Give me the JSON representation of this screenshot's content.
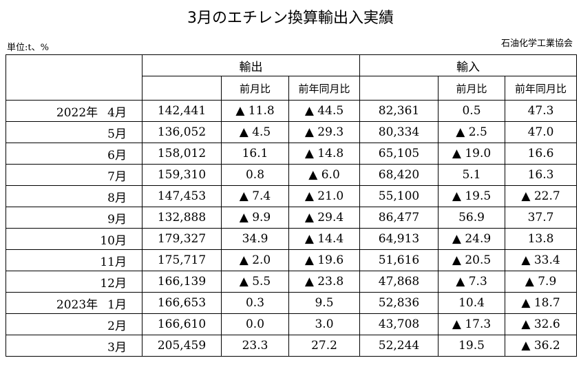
{
  "title": "3月のエチレン換算輸出入実績",
  "unit": "単位:t、%",
  "source": "石油化学工業協会",
  "headers": {
    "export": "輸出",
    "import": "輸入",
    "mom": "前月比",
    "yoy": "前年同月比"
  },
  "rows": [
    {
      "year": "2022年",
      "month": "4月",
      "exp": "142,441",
      "exp_mom": "▲ 11.8",
      "exp_yoy": "▲ 44.5",
      "imp": "82,361",
      "imp_mom": "0.5",
      "imp_yoy": "47.3"
    },
    {
      "year": "",
      "month": "5月",
      "exp": "136,052",
      "exp_mom": "▲ 4.5",
      "exp_yoy": "▲ 29.3",
      "imp": "80,334",
      "imp_mom": "▲ 2.5",
      "imp_yoy": "47.0"
    },
    {
      "year": "",
      "month": "6月",
      "exp": "158,012",
      "exp_mom": "16.1",
      "exp_yoy": "▲ 14.8",
      "imp": "65,105",
      "imp_mom": "▲ 19.0",
      "imp_yoy": "16.6"
    },
    {
      "year": "",
      "month": "7月",
      "exp": "159,310",
      "exp_mom": "0.8",
      "exp_yoy": "▲ 6.0",
      "imp": "68,420",
      "imp_mom": "5.1",
      "imp_yoy": "16.3"
    },
    {
      "year": "",
      "month": "8月",
      "exp": "147,453",
      "exp_mom": "▲ 7.4",
      "exp_yoy": "▲ 21.0",
      "imp": "55,100",
      "imp_mom": "▲ 19.5",
      "imp_yoy": "▲ 22.7"
    },
    {
      "year": "",
      "month": "9月",
      "exp": "132,888",
      "exp_mom": "▲ 9.9",
      "exp_yoy": "▲ 29.4",
      "imp": "86,477",
      "imp_mom": "56.9",
      "imp_yoy": "37.7"
    },
    {
      "year": "",
      "month": "10月",
      "exp": "179,327",
      "exp_mom": "34.9",
      "exp_yoy": "▲ 14.4",
      "imp": "64,913",
      "imp_mom": "▲ 24.9",
      "imp_yoy": "13.8"
    },
    {
      "year": "",
      "month": "11月",
      "exp": "175,717",
      "exp_mom": "▲ 2.0",
      "exp_yoy": "▲ 19.6",
      "imp": "51,616",
      "imp_mom": "▲ 20.5",
      "imp_yoy": "▲ 33.4"
    },
    {
      "year": "",
      "month": "12月",
      "exp": "166,139",
      "exp_mom": "▲ 5.5",
      "exp_yoy": "▲ 23.8",
      "imp": "47,868",
      "imp_mom": "▲ 7.3",
      "imp_yoy": "▲ 7.9"
    },
    {
      "year": "2023年",
      "month": "1月",
      "exp": "166,653",
      "exp_mom": "0.3",
      "exp_yoy": "9.5",
      "imp": "52,836",
      "imp_mom": "10.4",
      "imp_yoy": "▲ 18.7"
    },
    {
      "year": "",
      "month": "2月",
      "exp": "166,610",
      "exp_mom": "0.0",
      "exp_yoy": "3.0",
      "imp": "43,708",
      "imp_mom": "▲ 17.3",
      "imp_yoy": "▲ 32.6"
    },
    {
      "year": "",
      "month": "3月",
      "exp": "205,459",
      "exp_mom": "23.3",
      "exp_yoy": "27.2",
      "imp": "52,244",
      "imp_mom": "19.5",
      "imp_yoy": "▲ 36.2"
    }
  ]
}
